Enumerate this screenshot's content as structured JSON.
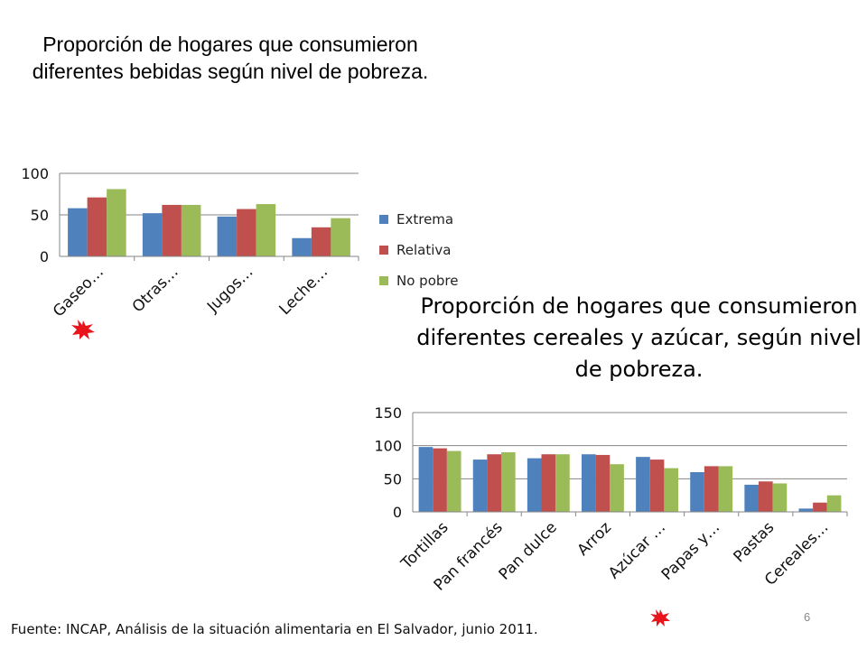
{
  "chart_data": [
    {
      "type": "bar",
      "title": "Proporción de hogares que consumieron diferentes bebidas según nivel de pobreza.",
      "categories": [
        "Gaseo…",
        "Otras…",
        "Jugos…",
        "Leche…"
      ],
      "series": [
        {
          "name": "Extrema",
          "values": [
            58,
            52,
            48,
            22
          ]
        },
        {
          "name": "Relativa",
          "values": [
            71,
            62,
            57,
            35
          ]
        },
        {
          "name": "No pobre",
          "values": [
            81,
            62,
            63,
            46
          ]
        }
      ],
      "yticks": [
        "0",
        "50",
        "100"
      ],
      "ylim": [
        0,
        100
      ],
      "xlabel": "",
      "ylabel": "",
      "grid": true,
      "legend": "right"
    },
    {
      "type": "bar",
      "title": "Proporción de hogares que consumieron diferentes cereales y azúcar, según nivel de pobreza.",
      "categories": [
        "Tortillas",
        "Pan francés",
        "Pan dulce",
        "Arroz",
        "Azúcar …",
        "Papas y…",
        "Pastas",
        "Cereales…"
      ],
      "series": [
        {
          "name": "Extrema",
          "values": [
            98,
            79,
            81,
            87,
            83,
            60,
            41,
            5
          ]
        },
        {
          "name": "Relativa",
          "values": [
            96,
            87,
            87,
            86,
            79,
            69,
            46,
            14
          ]
        },
        {
          "name": "No pobre",
          "values": [
            92,
            90,
            87,
            72,
            66,
            69,
            43,
            25
          ]
        }
      ],
      "yticks": [
        "0",
        "50",
        "100",
        "150"
      ],
      "ylim": [
        0,
        150
      ],
      "xlabel": "",
      "ylabel": "",
      "grid": true,
      "legend": "none"
    }
  ],
  "legend": {
    "items": [
      {
        "label": "Extrema",
        "color": "#4F81BD"
      },
      {
        "label": "Relativa",
        "color": "#C0504D"
      },
      {
        "label": "No pobre",
        "color": "#9BBB59"
      }
    ]
  },
  "titles": {
    "chart1": "Proporción de hogares que consumieron diferentes bebidas según nivel de pobreza.",
    "chart2": "Proporción de hogares que consumieron diferentes cereales y azúcar, según nivel de pobreza."
  },
  "footer": {
    "source": "Fuente: INCAP, Análisis de la situación alimentaria en El Salvador, junio 2011.",
    "page_number": "6"
  },
  "colors": {
    "gridline": "#868686",
    "axis": "#868686",
    "starburst": "#E8161C"
  },
  "icons": [
    "starburst-icon",
    "starburst-icon"
  ]
}
